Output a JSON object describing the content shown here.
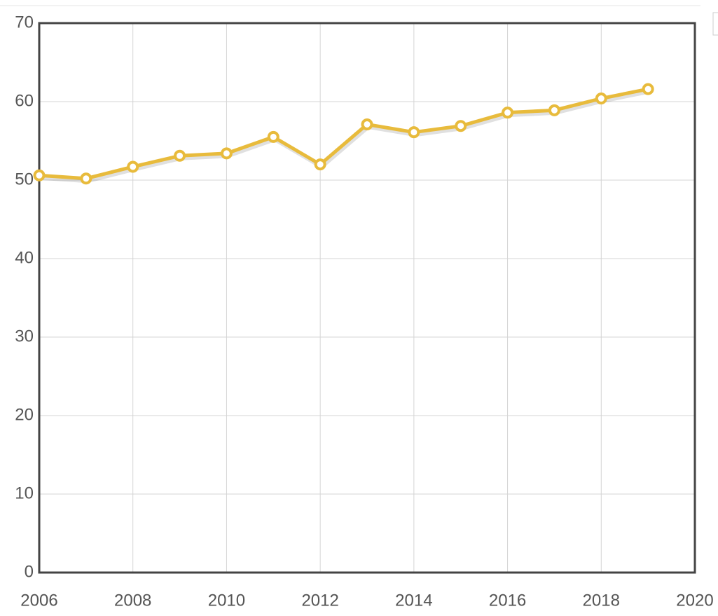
{
  "chart_data": {
    "type": "line",
    "x": [
      2006,
      2007,
      2008,
      2009,
      2010,
      2011,
      2012,
      2013,
      2014,
      2015,
      2016,
      2017,
      2018,
      2019
    ],
    "series": [
      {
        "color": "#e8bb3c",
        "values": [
          50.6,
          50.2,
          51.7,
          53.1,
          53.4,
          55.5,
          52.0,
          57.1,
          56.1,
          56.9,
          58.6,
          58.9,
          60.4,
          61.6
        ]
      }
    ],
    "xlim": [
      2006,
      2020
    ],
    "xticks": [
      2006,
      2008,
      2010,
      2012,
      2014,
      2016,
      2018,
      2020
    ],
    "ylim": [
      0,
      70
    ],
    "yticks": [
      0,
      10,
      20,
      30,
      40,
      50,
      60,
      70
    ],
    "grid": true
  }
}
